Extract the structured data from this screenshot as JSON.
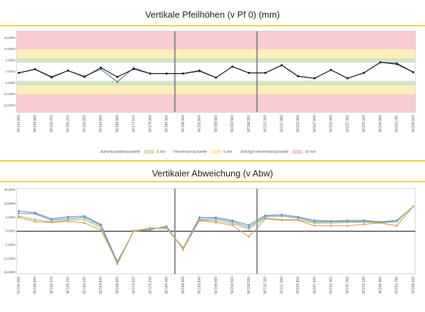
{
  "chart_data": [
    {
      "type": "line",
      "title": "Vertikale Pfeilhöhen (v Pf 0) (mm)",
      "categories": [
        "56'140.860",
        "56'145.660",
        "56'150.470",
        "56'155.210",
        "56'160.020",
        "56'164.840",
        "56'169.660",
        "56'174.510",
        "56'179.340",
        "56'184.160",
        "56'189.000",
        "56'193.840",
        "56'198.660",
        "56'203.500",
        "56'208.320",
        "56'213.160",
        "56'217.980",
        "56'222.800",
        "56'227.640",
        "56'232.460",
        "56'237.300",
        "56'242.120",
        "56'246.960",
        "56'251.780",
        "56'256.620"
      ],
      "series": [
        {
          "color": "#5b7fb5",
          "values": [
            -0.5,
            1.1,
            -2.6,
            0.5,
            -2.0,
            1.1,
            -4.5,
            1.7,
            -0.8,
            -0.8,
            -0.8,
            0.2,
            -2.6,
            2.3,
            -0.5,
            -0.5,
            2.9,
            -2.0,
            -2.9,
            0.8,
            -2.9,
            -0.5,
            4.2,
            3.9,
            -0.2
          ]
        },
        {
          "color": "#1a1a1a",
          "values": [
            -0.5,
            1.1,
            -2.3,
            0.5,
            -2.3,
            1.8,
            -2.3,
            1.2,
            -0.8,
            -0.8,
            -0.8,
            0.5,
            -2.6,
            2.3,
            -0.5,
            -0.5,
            2.9,
            -2.0,
            -2.9,
            0.8,
            -2.9,
            -0.5,
            4.2,
            3.4,
            -0.2
          ]
        }
      ],
      "ylim": [
        -18,
        18
      ],
      "yticks": [
        {
          "value": -15,
          "label": "-15,0000"
        },
        {
          "value": -10,
          "label": "-10,0000"
        },
        {
          "value": -5,
          "label": "-5,0000"
        },
        {
          "value": 0,
          "label": "0,0000"
        },
        {
          "value": 5,
          "label": "5,0000"
        },
        {
          "value": 10,
          "label": "10,0000"
        },
        {
          "value": 15,
          "label": "15,0000"
        }
      ],
      "bands": [
        {
          "name": "Aufmerksamkeitsschwelle",
          "threshold": 4,
          "threshold_label": "4 mm",
          "color": "#cfe6c9"
        },
        {
          "name": "Interventionsschwelle",
          "threshold": 6,
          "threshold_label": "6 mm",
          "color": "#fbf0b8"
        },
        {
          "name": "Sofortige Interventionsschwelle",
          "threshold": 10,
          "threshold_label": "10 mm",
          "color": "#f8cdd0"
        }
      ],
      "section_breaks": [
        9.5,
        14.5
      ],
      "legend": "bottom",
      "grid": false
    },
    {
      "type": "line",
      "title": "Vertikaler Abweichung (v Abw)",
      "categories": [
        "56'140.860",
        "56'145.660",
        "56'150.470",
        "56'155.210",
        "56'160.020",
        "56'164.840",
        "56'169.660",
        "56'174.510",
        "56'179.340",
        "56'184.160",
        "56'189.000",
        "56'193.840",
        "56'198.660",
        "56'203.500",
        "56'208.320",
        "56'213.160",
        "56'217.980",
        "56'222.800",
        "56'227.640",
        "56'232.460",
        "56'237.300",
        "56'242.120",
        "56'246.960",
        "56'251.780",
        "56'256.620"
      ],
      "series": [
        {
          "color": "#6b8cc4",
          "values": [
            7.3,
            6.7,
            4.5,
            5.2,
            5.5,
            2.4,
            -11.1,
            0.1,
            0.9,
            1.4,
            -6.2,
            5.0,
            5.0,
            3.9,
            2.2,
            5.7,
            6.0,
            5.2,
            3.9,
            3.7,
            3.9,
            3.9,
            3.4,
            3.9,
            9.0
          ]
        },
        {
          "color": "#7fa3a8",
          "values": [
            6.5,
            6.3,
            4.0,
            4.5,
            5.0,
            2.0,
            -11.8,
            0.0,
            0.5,
            1.8,
            -6.7,
            4.3,
            4.5,
            3.4,
            1.5,
            5.3,
            5.5,
            4.8,
            3.4,
            3.5,
            3.5,
            3.5,
            3.2,
            3.6,
            9.0
          ]
        },
        {
          "color": "#9cc28a",
          "values": [
            5.5,
            4.2,
            3.4,
            4.0,
            4.2,
            1.5,
            -12.0,
            0.2,
            1.0,
            1.2,
            -6.5,
            4.0,
            3.8,
            2.8,
            0.8,
            4.8,
            4.2,
            4.2,
            3.0,
            3.0,
            3.2,
            3.3,
            3.0,
            3.5,
            9.0
          ]
        },
        {
          "color": "#e0a35a",
          "values": [
            5.0,
            3.5,
            3.2,
            3.6,
            3.0,
            0.5,
            -11.5,
            0.0,
            1.2,
            1.0,
            -6.0,
            3.8,
            3.2,
            2.2,
            -2.0,
            4.5,
            4.0,
            4.0,
            2.0,
            2.0,
            2.0,
            2.5,
            3.0,
            2.0,
            9.0
          ]
        }
      ],
      "ylim": [
        -15.5,
        15.5
      ],
      "yticks": [
        {
          "value": -15,
          "label": "-15,0000"
        },
        {
          "value": -10,
          "label": "-10,0000"
        },
        {
          "value": -5,
          "label": "-5,0000"
        },
        {
          "value": 0,
          "label": "0,0000"
        },
        {
          "value": 5,
          "label": "5,0000"
        },
        {
          "value": 10,
          "label": "10,0000"
        },
        {
          "value": 15,
          "label": "15,0000"
        }
      ],
      "section_breaks": [
        9.5,
        14.5
      ],
      "zero_line": true,
      "grid": false
    }
  ]
}
